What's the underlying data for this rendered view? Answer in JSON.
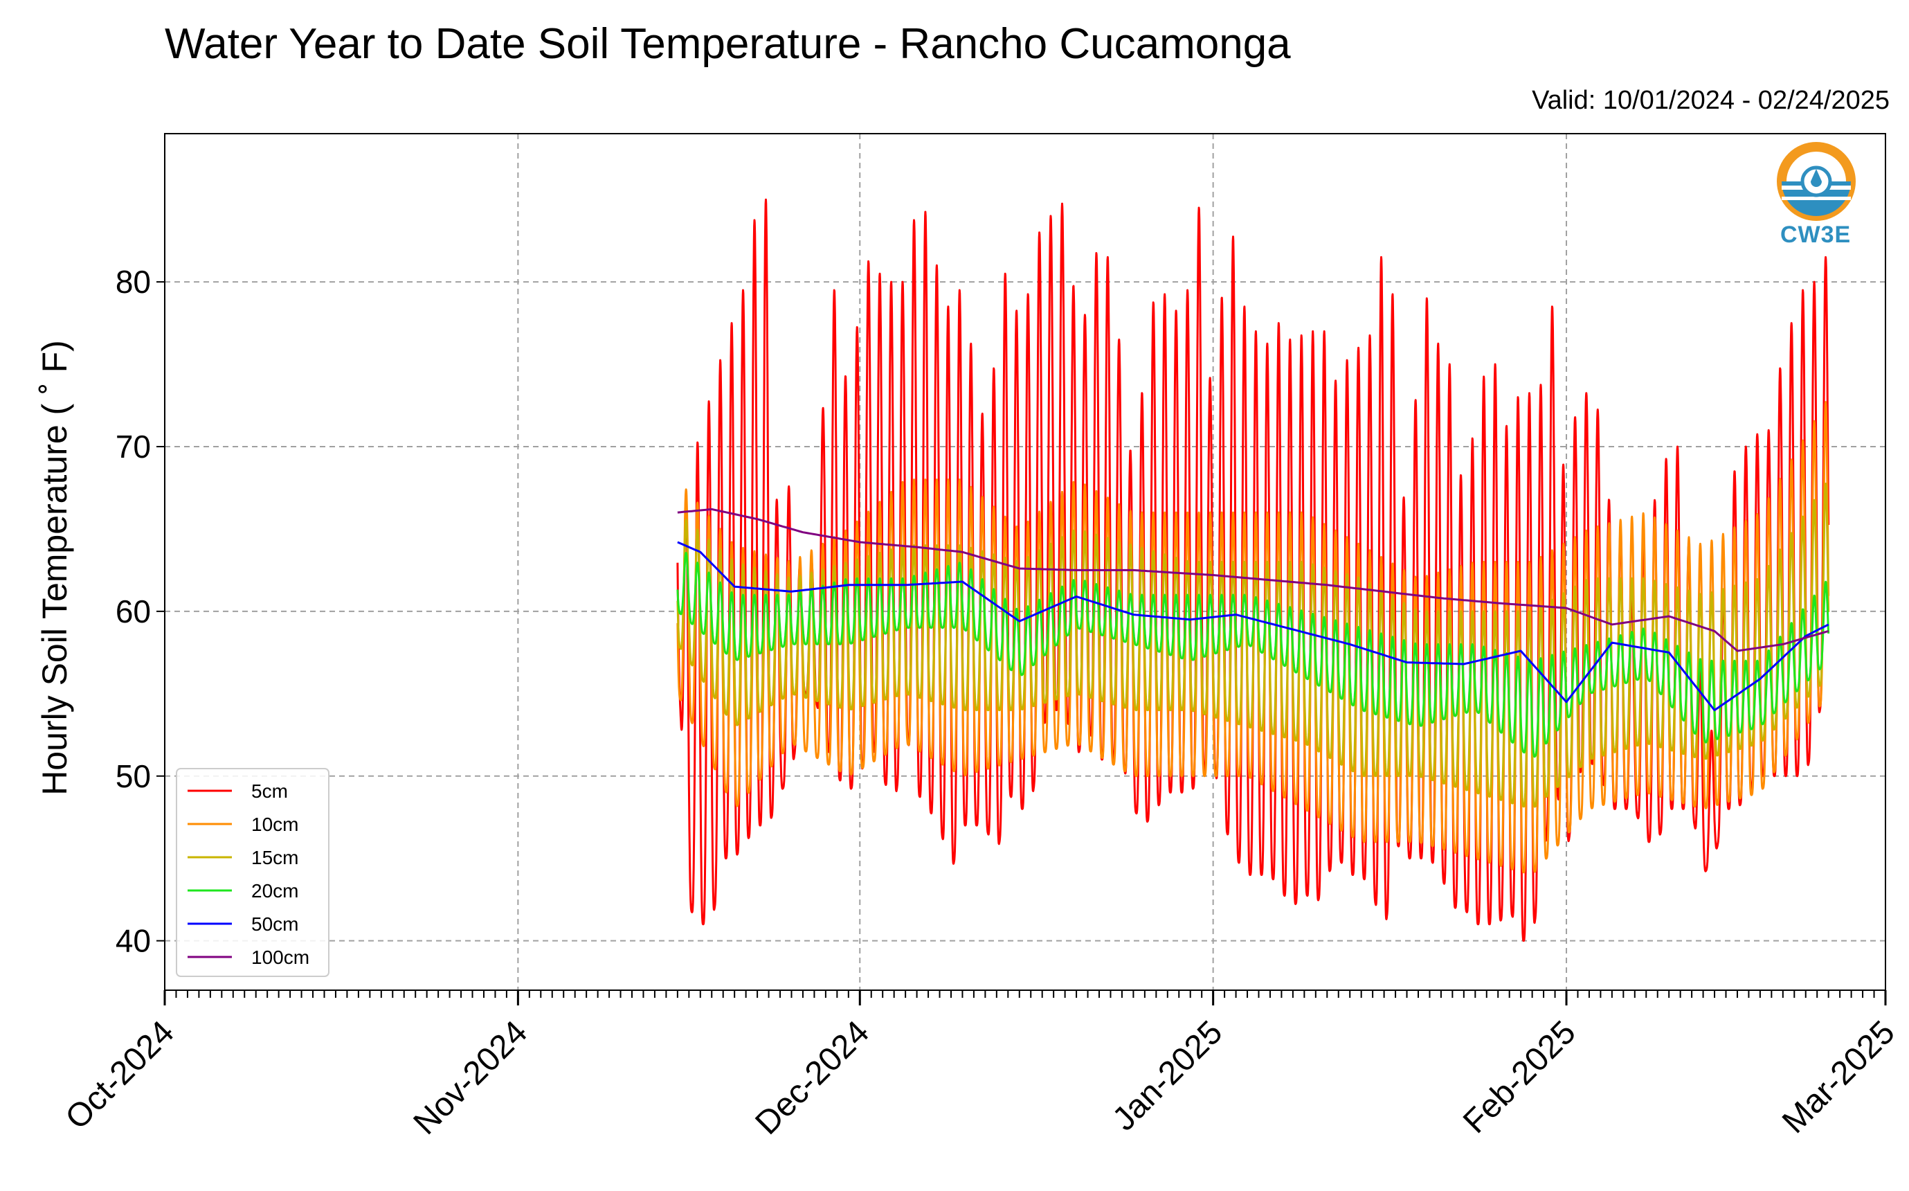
{
  "chart_data": {
    "type": "line",
    "title": "Water Year to Date Soil Temperature - Rancho Cucamonga",
    "subtitle": "Valid: 10/01/2024 - 02/24/2025",
    "ylabel": "Hourly Soil Temperature ($^\\circ$F)",
    "ylabel_display": "Hourly Soil Temperature ( ˚ F)",
    "xlabel": "",
    "x_start": "2024-10-01",
    "x_end": "2025-03-01",
    "ylim": [
      37,
      89
    ],
    "x_ticks": [
      "Oct-2024",
      "Nov-2024",
      "Dec-2024",
      "Jan-2025",
      "Feb-2025",
      "Mar-2025"
    ],
    "x_tick_dates": [
      "2024-10-01",
      "2024-11-01",
      "2024-12-01",
      "2025-01-01",
      "2025-02-01",
      "2025-03-01"
    ],
    "y_ticks": [
      40,
      50,
      60,
      70,
      80
    ],
    "grid": true,
    "legend_position": "lower-left",
    "series": [
      {
        "name": "5cm",
        "color": "#ff0000",
        "daily_x": [
          "2024-11-15",
          "2024-11-16",
          "2024-11-17",
          "2024-11-18",
          "2024-11-19",
          "2024-11-20",
          "2024-11-21",
          "2024-11-22",
          "2024-11-23",
          "2024-11-24",
          "2024-11-25",
          "2024-11-26",
          "2024-11-27",
          "2024-11-28",
          "2024-11-29",
          "2024-11-30",
          "2024-12-01",
          "2024-12-02",
          "2024-12-03",
          "2024-12-04",
          "2024-12-05",
          "2024-12-06",
          "2024-12-07",
          "2024-12-08",
          "2024-12-09",
          "2024-12-10",
          "2024-12-11",
          "2024-12-12",
          "2024-12-13",
          "2024-12-14",
          "2024-12-15",
          "2024-12-16",
          "2024-12-17",
          "2024-12-18",
          "2024-12-19",
          "2024-12-20",
          "2024-12-21",
          "2024-12-22",
          "2024-12-23",
          "2024-12-24",
          "2024-12-25",
          "2024-12-26",
          "2024-12-27",
          "2024-12-28",
          "2024-12-29",
          "2024-12-30",
          "2024-12-31",
          "2025-01-01",
          "2025-01-02",
          "2025-01-03",
          "2025-01-04",
          "2025-01-05",
          "2025-01-06",
          "2025-01-07",
          "2025-01-08",
          "2025-01-09",
          "2025-01-10",
          "2025-01-11",
          "2025-01-12",
          "2025-01-13",
          "2025-01-14",
          "2025-01-15",
          "2025-01-16",
          "2025-01-17",
          "2025-01-18",
          "2025-01-19",
          "2025-01-20",
          "2025-01-21",
          "2025-01-22",
          "2025-01-23",
          "2025-01-24",
          "2025-01-25",
          "2025-01-26",
          "2025-01-27",
          "2025-01-28",
          "2025-01-29",
          "2025-01-30",
          "2025-01-31",
          "2025-02-01",
          "2025-02-02",
          "2025-02-03",
          "2025-02-04",
          "2025-02-05",
          "2025-02-06",
          "2025-02-07",
          "2025-02-08",
          "2025-02-09",
          "2025-02-10",
          "2025-02-11",
          "2025-02-12",
          "2025-02-13",
          "2025-02-14",
          "2025-02-15",
          "2025-02-16",
          "2025-02-17",
          "2025-02-18",
          "2025-02-19",
          "2025-02-20",
          "2025-02-21",
          "2025-02-22",
          "2025-02-23",
          "2025-02-24"
        ],
        "daily_max": [
          73,
          65,
          72,
          73,
          76,
          78,
          80,
          85,
          85,
          60,
          70,
          60,
          64,
          75,
          81,
          72,
          79,
          82,
          80,
          80,
          80,
          85,
          84,
          80,
          78,
          80,
          75,
          71,
          76,
          82,
          77,
          80,
          84,
          84,
          85,
          78,
          78,
          83,
          81,
          75,
          68,
          75,
          80,
          79,
          78,
          80,
          86,
          70,
          82,
          83,
          77,
          77,
          76,
          78,
          76,
          77,
          77,
          77,
          73,
          76,
          76,
          77,
          83,
          78,
          63,
          76,
          80,
          75,
          75,
          66,
          72,
          75,
          75,
          70,
          74,
          73,
          74,
          80,
          65,
          74,
          73,
          72,
          65,
          65,
          60,
          66,
          67,
          70,
          70,
          62,
          55,
          52,
          64,
          70,
          70,
          71,
          71,
          76,
          78,
          80,
          80,
          82
        ],
        "daily_min": [
          58,
          42,
          41,
          41,
          45,
          45,
          46,
          47,
          47,
          49,
          50,
          55,
          55,
          52,
          50,
          49,
          50,
          52,
          50,
          48,
          53,
          49,
          48,
          47,
          44,
          47,
          47,
          47,
          45,
          49,
          48,
          48,
          53,
          54,
          54,
          51,
          53,
          51,
          51,
          51,
          48,
          47,
          48,
          49,
          49,
          49,
          50,
          51,
          47,
          45,
          44,
          44,
          44,
          43,
          42,
          43,
          42,
          44,
          45,
          44,
          44,
          43,
          40,
          46,
          45,
          45,
          45,
          44,
          42,
          42,
          41,
          41,
          41,
          42,
          40,
          40,
          45,
          50,
          45,
          50,
          51,
          50,
          48,
          48,
          48,
          46,
          46,
          48,
          48,
          48,
          44,
          45,
          48,
          48,
          49,
          50,
          50,
          50,
          50,
          50,
          53,
          57
        ]
      },
      {
        "name": "10cm",
        "color": "#ff8c00",
        "daily_x": [
          "2024-11-15",
          "2024-11-20",
          "2024-11-25",
          "2024-11-30",
          "2024-12-05",
          "2024-12-10",
          "2024-12-15",
          "2024-12-20",
          "2024-12-25",
          "2024-12-30",
          "2025-01-04",
          "2025-01-09",
          "2025-01-14",
          "2025-01-19",
          "2025-01-24",
          "2025-01-29",
          "2025-02-03",
          "2025-02-08",
          "2025-02-13",
          "2025-02-18",
          "2025-02-24"
        ],
        "daily_max": [
          68,
          64,
          63,
          65,
          68,
          68,
          65,
          68,
          66,
          66,
          66,
          66,
          64,
          62,
          63,
          63,
          65,
          66,
          64,
          66,
          73
        ],
        "daily_min": [
          55,
          48,
          52,
          50,
          52,
          50,
          51,
          52,
          50,
          50,
          50,
          48,
          46,
          46,
          45,
          44,
          48,
          49,
          48,
          49,
          55
        ]
      },
      {
        "name": "15cm",
        "color": "#c8b400",
        "daily_x": [
          "2024-11-15",
          "2024-11-20",
          "2024-11-25",
          "2024-11-30",
          "2024-12-05",
          "2024-12-10",
          "2024-12-15",
          "2024-12-20",
          "2024-12-25",
          "2024-12-30",
          "2025-01-04",
          "2025-01-09",
          "2025-01-14",
          "2025-01-19",
          "2025-01-24",
          "2025-01-29",
          "2025-02-03",
          "2025-02-08",
          "2025-02-13",
          "2025-02-18",
          "2025-02-24"
        ],
        "daily_max": [
          66,
          63,
          62,
          63,
          64,
          64,
          63,
          65,
          64,
          63,
          63,
          63,
          62,
          60,
          60,
          60,
          62,
          62,
          61,
          62,
          68
        ],
        "daily_min": [
          58,
          53,
          55,
          54,
          55,
          54,
          54,
          55,
          54,
          54,
          53,
          52,
          50,
          50,
          49,
          48,
          51,
          52,
          51,
          52,
          56
        ]
      },
      {
        "name": "20cm",
        "color": "#1ee61e",
        "daily_x": [
          "2024-11-15",
          "2024-11-20",
          "2024-11-25",
          "2024-11-30",
          "2024-12-05",
          "2024-12-10",
          "2024-12-15",
          "2024-12-20",
          "2024-12-25",
          "2024-12-30",
          "2025-01-04",
          "2025-01-09",
          "2025-01-14",
          "2025-01-19",
          "2025-01-24",
          "2025-01-29",
          "2025-02-03",
          "2025-02-08",
          "2025-02-13",
          "2025-02-18",
          "2025-02-24"
        ],
        "daily_max": [
          64,
          61,
          61,
          62,
          62,
          63,
          60,
          62,
          61,
          61,
          61,
          60,
          59,
          58,
          58,
          57,
          58,
          59,
          57,
          57,
          62
        ],
        "daily_min": [
          60,
          57,
          58,
          58,
          59,
          59,
          56,
          59,
          58,
          57,
          58,
          56,
          54,
          53,
          54,
          51,
          55,
          56,
          52,
          53,
          57
        ]
      },
      {
        "name": "50cm",
        "color": "#0000ff",
        "daily_x": [
          "2024-11-15",
          "2024-11-17",
          "2024-11-20",
          "2024-11-25",
          "2024-11-30",
          "2024-12-05",
          "2024-12-10",
          "2024-12-15",
          "2024-12-20",
          "2024-12-25",
          "2024-12-30",
          "2025-01-03",
          "2025-01-08",
          "2025-01-13",
          "2025-01-18",
          "2025-01-23",
          "2025-01-28",
          "2025-02-01",
          "2025-02-05",
          "2025-02-10",
          "2025-02-14",
          "2025-02-18",
          "2025-02-22",
          "2025-02-24"
        ],
        "daily_y": [
          64.2,
          63.6,
          61.5,
          61.2,
          61.6,
          61.6,
          61.8,
          59.4,
          60.9,
          59.8,
          59.5,
          59.8,
          58.9,
          58.0,
          56.9,
          56.8,
          57.6,
          54.5,
          58.1,
          57.5,
          54.0,
          55.9,
          58.5,
          59.2
        ]
      },
      {
        "name": "100cm",
        "color": "#800080",
        "daily_x": [
          "2024-11-15",
          "2024-11-18",
          "2024-11-22",
          "2024-11-26",
          "2024-12-01",
          "2024-12-06",
          "2024-12-10",
          "2024-12-15",
          "2024-12-20",
          "2024-12-25",
          "2025-01-01",
          "2025-01-06",
          "2025-01-11",
          "2025-01-16",
          "2025-01-21",
          "2025-01-26",
          "2025-02-01",
          "2025-02-05",
          "2025-02-10",
          "2025-02-14",
          "2025-02-16",
          "2025-02-20",
          "2025-02-24"
        ],
        "daily_y": [
          66.0,
          66.2,
          65.6,
          64.8,
          64.2,
          63.9,
          63.6,
          62.6,
          62.5,
          62.5,
          62.2,
          61.9,
          61.6,
          61.2,
          60.8,
          60.5,
          60.2,
          59.2,
          59.7,
          58.8,
          57.6,
          58.0,
          58.8
        ]
      }
    ]
  },
  "logo": {
    "text": "CW3E",
    "icon": "cw3e-logo-icon"
  }
}
